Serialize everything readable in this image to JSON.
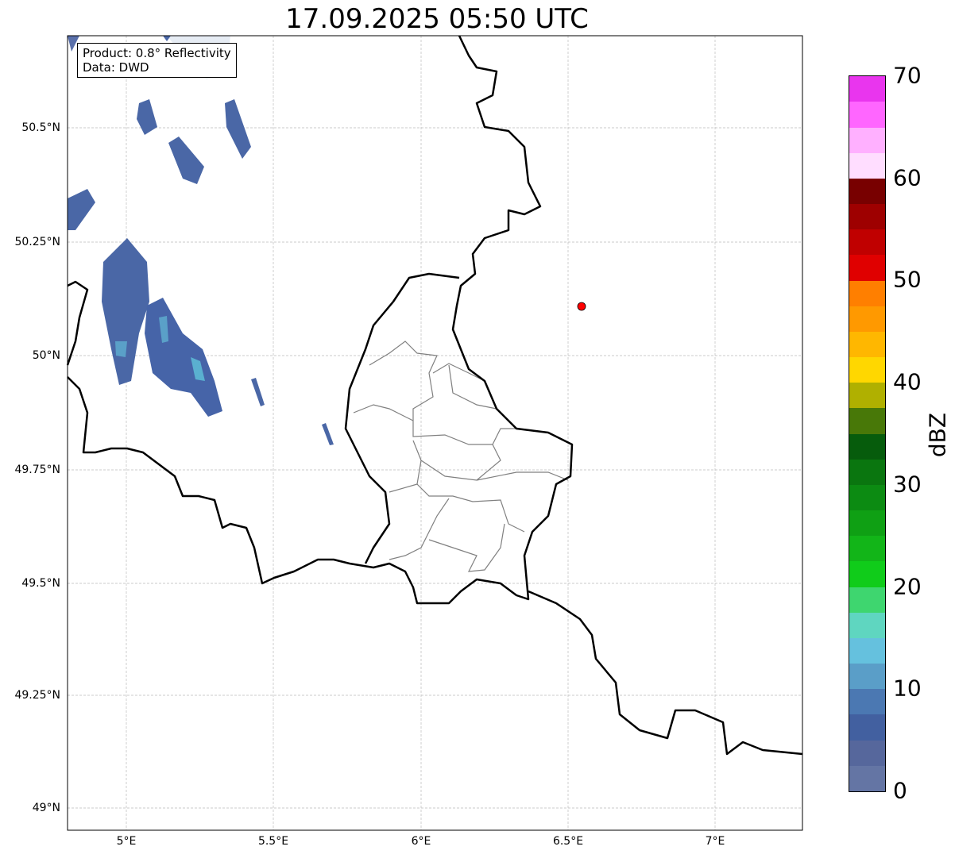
{
  "title": "17.09.2025 05:50 UTC",
  "info": {
    "product": "Product: 0.8° Reflectivity",
    "data": "Data: DWD"
  },
  "axes": {
    "lat_labels": [
      "50.5°N",
      "50.25°N",
      "50°N",
      "49.75°N",
      "49.5°N",
      "49.25°N",
      "49°N"
    ],
    "lon_labels": [
      "5°E",
      "5.5°E",
      "6°E",
      "6.5°E",
      "7°E"
    ]
  },
  "colorbar": {
    "label": "dBZ",
    "ticks": [
      "0",
      "10",
      "20",
      "30",
      "40",
      "50",
      "60",
      "70"
    ],
    "range": [
      0,
      70
    ],
    "colors": [
      "#6475a4",
      "#56679c",
      "#4260a0",
      "#4b78b2",
      "#5a9ec8",
      "#65c1de",
      "#5fd6c0",
      "#3ed66f",
      "#10cc1a",
      "#12b518",
      "#0fa014",
      "#0c8b12",
      "#0a760f",
      "#065c0c",
      "#487808",
      "#b0b000",
      "#ffd700",
      "#ffb700",
      "#ff9900",
      "#ff7f00",
      "#e00000",
      "#c00000",
      "#9e0000",
      "#780000",
      "#ffddff",
      "#ffb0ff",
      "#ff66ff",
      "#e935ee"
    ]
  },
  "marker_color": "#ff0000"
}
